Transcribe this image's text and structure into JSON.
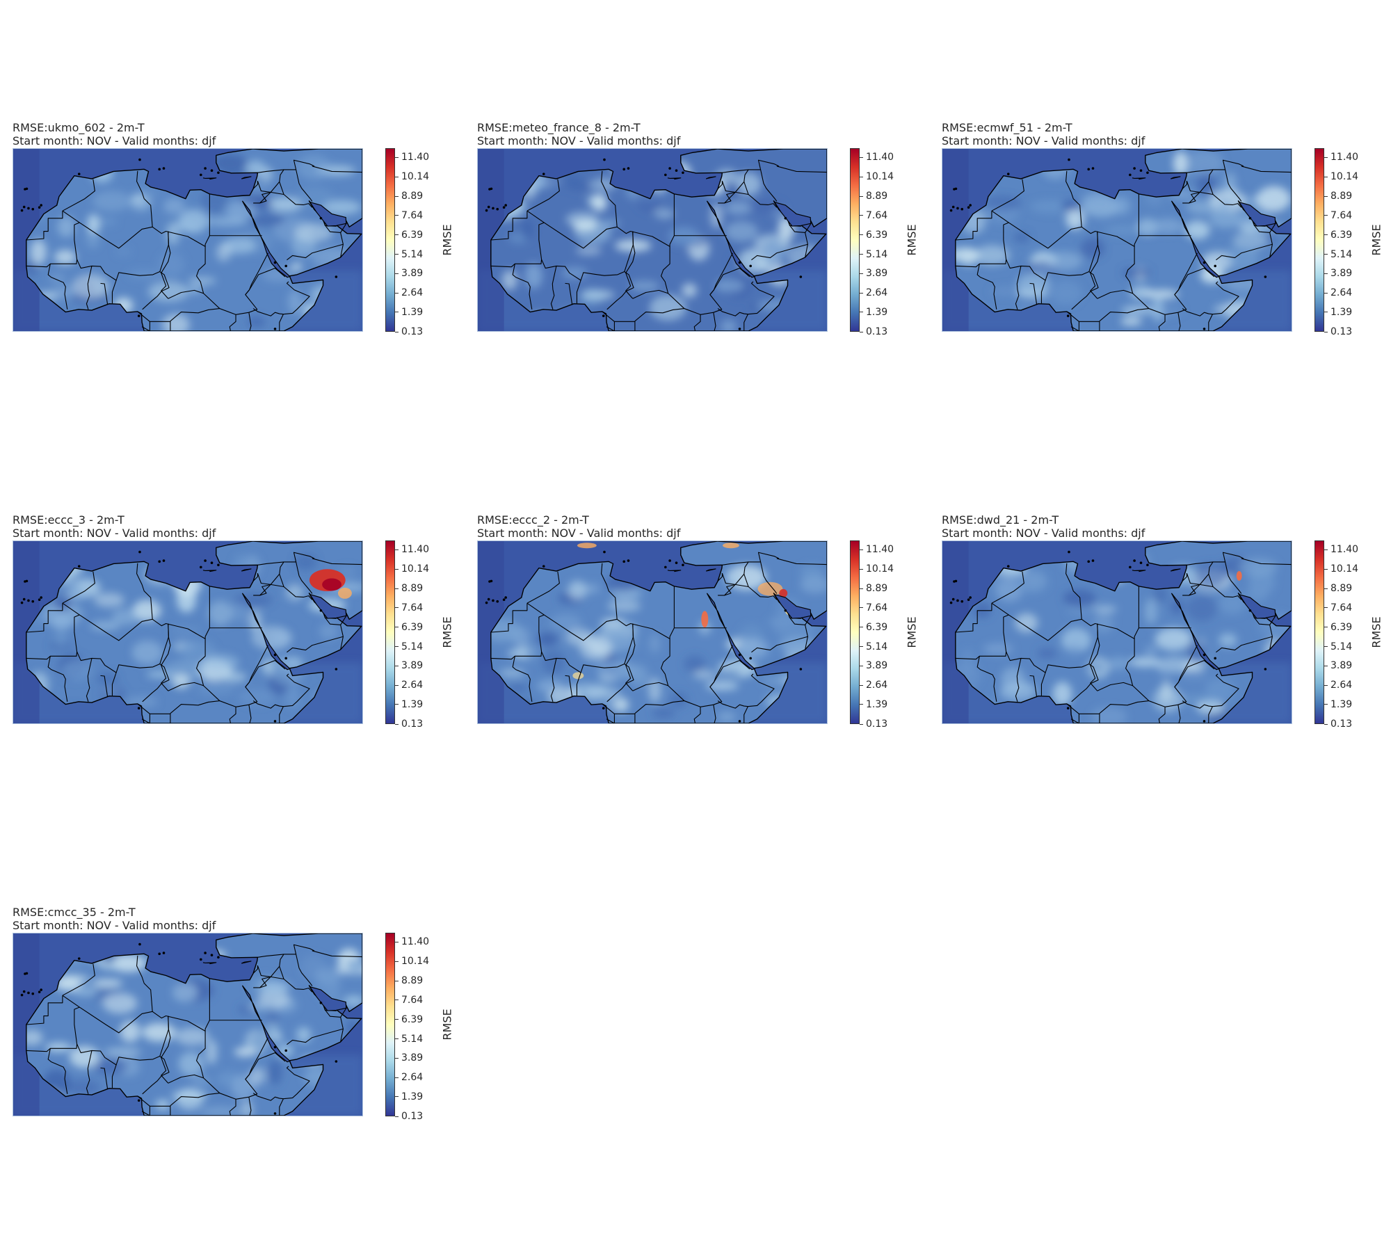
{
  "colorbar": {
    "label": "RMSE",
    "ticks": [
      "11.40",
      "10.14",
      "8.89",
      "7.64",
      "6.39",
      "5.14",
      "3.89",
      "2.64",
      "1.39",
      "0.13"
    ],
    "min": 0.13,
    "max": 12.0,
    "colormap": [
      "#313695",
      "#4575b4",
      "#74add1",
      "#abd9e9",
      "#e0f3f8",
      "#ffffbf",
      "#fee090",
      "#fdae61",
      "#f46d43",
      "#d73027",
      "#a50026"
    ]
  },
  "panels": [
    {
      "title": "RMSE:ukmo_602 - 2m-T",
      "subtitle": "Start month: NOV - Valid months: djf",
      "hotspots": []
    },
    {
      "title": "RMSE:meteo_france_8 - 2m-T",
      "subtitle": "Start month: NOV - Valid months: djf",
      "hotspots": []
    },
    {
      "title": "RMSE:ecmwf_51 - 2m-T",
      "subtitle": "Start month: NOV - Valid months: djf",
      "hotspots": []
    },
    {
      "title": "RMSE:eccc_3 - 2m-T",
      "subtitle": "Start month: NOV - Valid months: djf",
      "hotspots": [
        "persian-gulf-red"
      ]
    },
    {
      "title": "RMSE:eccc_2 - 2m-T",
      "subtitle": "Start month: NOV - Valid months: djf",
      "hotspots": [
        "nile-red",
        "gulf-orange",
        "mediterranean-coast-orange"
      ]
    },
    {
      "title": "RMSE:dwd_21 - 2m-T",
      "subtitle": "Start month: NOV - Valid months: djf",
      "hotspots": [
        "arabia-orange"
      ]
    },
    {
      "title": "RMSE:cmcc_35 - 2m-T",
      "subtitle": "Start month: NOV - Valid months: djf",
      "hotspots": []
    }
  ]
}
